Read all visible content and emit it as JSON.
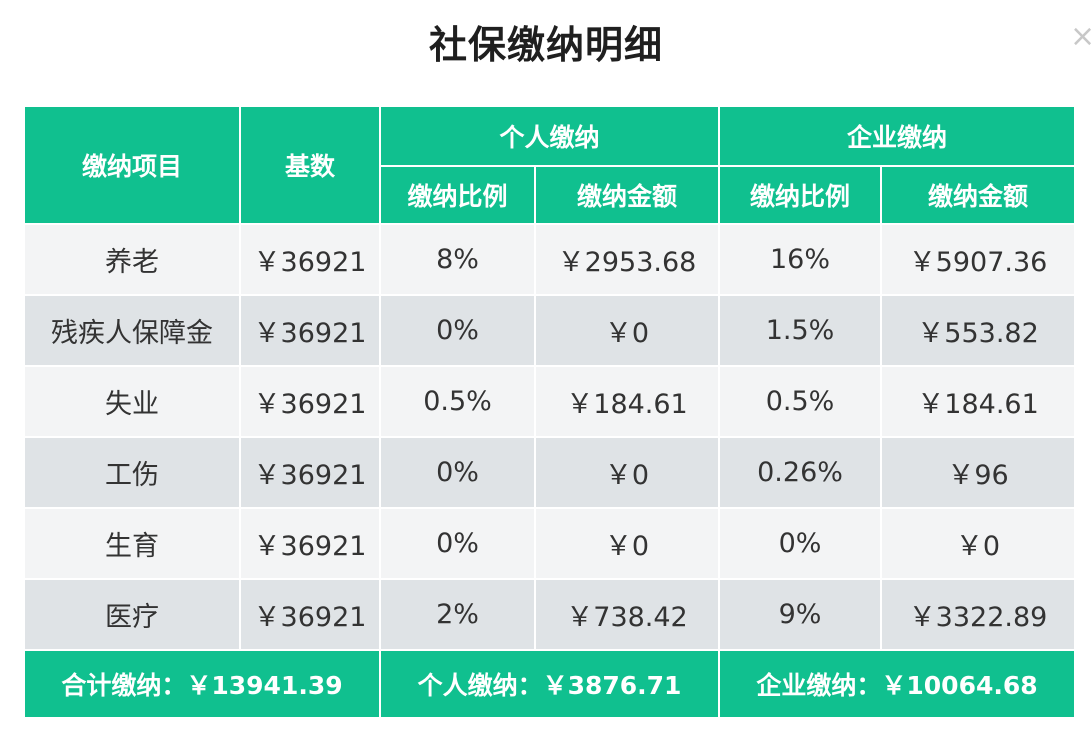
{
  "page": {
    "title": "社保缴纳明细",
    "close_icon": "×"
  },
  "table": {
    "headers": {
      "item": "缴纳项目",
      "base": "基数",
      "personal_group": "个人缴纳",
      "company_group": "企业缴纳",
      "personal_rate": "缴纳比例",
      "personal_amount": "缴纳金额",
      "company_rate": "缴纳比例",
      "company_amount": "缴纳金额"
    },
    "rows": [
      {
        "item": "养老",
        "base": "￥36921",
        "p_rate": "8%",
        "p_amount": "￥2953.68",
        "c_rate": "16%",
        "c_amount": "￥5907.36"
      },
      {
        "item": "残疾人保障金",
        "base": "￥36921",
        "p_rate": "0%",
        "p_amount": "￥0",
        "c_rate": "1.5%",
        "c_amount": "￥553.82"
      },
      {
        "item": "失业",
        "base": "￥36921",
        "p_rate": "0.5%",
        "p_amount": "￥184.61",
        "c_rate": "0.5%",
        "c_amount": "￥184.61"
      },
      {
        "item": "工伤",
        "base": "￥36921",
        "p_rate": "0%",
        "p_amount": "￥0",
        "c_rate": "0.26%",
        "c_amount": "￥96"
      },
      {
        "item": "生育",
        "base": "￥36921",
        "p_rate": "0%",
        "p_amount": "￥0",
        "c_rate": "0%",
        "c_amount": "￥0"
      },
      {
        "item": "医疗",
        "base": "￥36921",
        "p_rate": "2%",
        "p_amount": "￥738.42",
        "c_rate": "9%",
        "c_amount": "￥3322.89"
      }
    ],
    "footer": {
      "total": "合计缴纳：￥13941.39",
      "personal_total": "个人缴纳：￥3876.71",
      "company_total": "企业缴纳：￥10064.68"
    }
  },
  "colors": {
    "header_bg": "#10c08f",
    "row_light": "#f3f4f5",
    "row_dark": "#dfe3e6"
  }
}
